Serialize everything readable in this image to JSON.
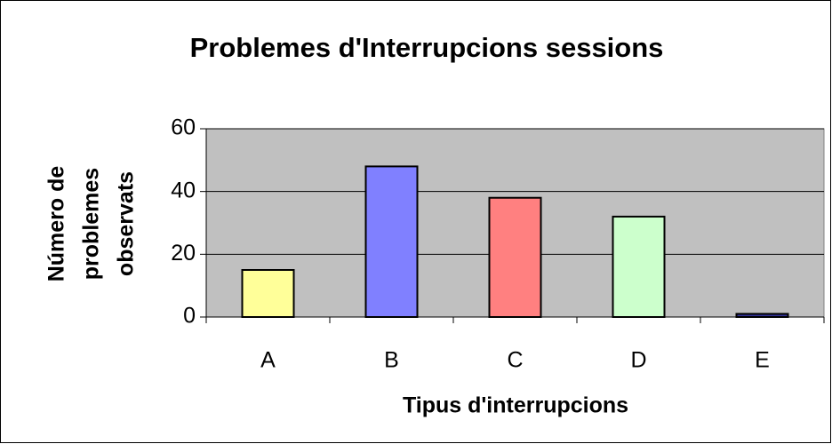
{
  "chart_data": {
    "type": "bar",
    "title": "Problemes d'Interrupcions sessions",
    "x_label": "Tipus d'interrupcions",
    "y_label": [
      "Número de",
      "problemes",
      "observats"
    ],
    "categories": [
      "A",
      "B",
      "C",
      "D",
      "E"
    ],
    "values": [
      15,
      48,
      38,
      32,
      1
    ],
    "colors": [
      "#ffff99",
      "#8080ff",
      "#ff8080",
      "#ccffcc",
      "#333399"
    ],
    "ylim": [
      0,
      60
    ],
    "yticks": [
      0,
      20,
      40,
      60
    ],
    "grid": true,
    "plot_background": "#c0c0c0"
  }
}
